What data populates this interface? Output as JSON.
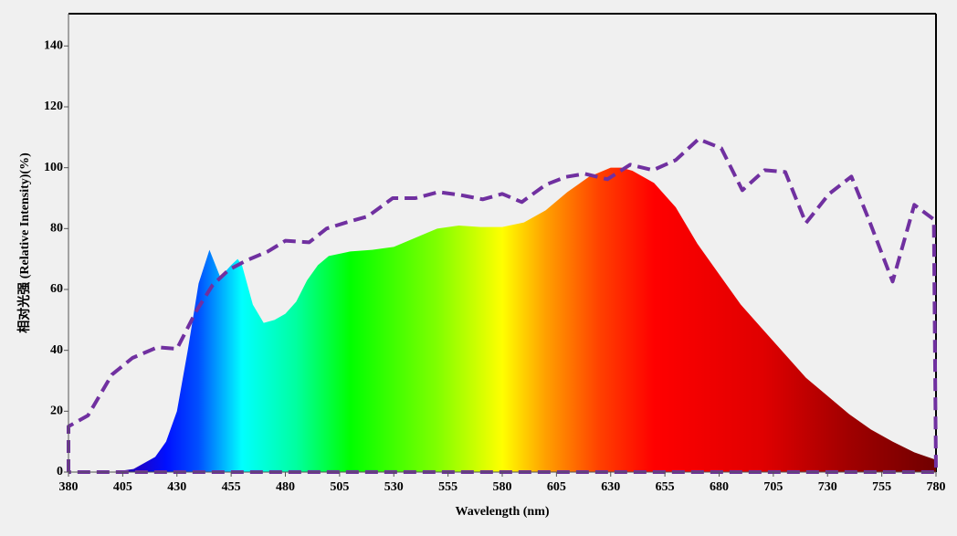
{
  "chart_data": {
    "type": "line",
    "x_label": "Wavelength (nm)",
    "y_label": "相对光强 (Relative Intensity)(%)",
    "xlim": [
      380,
      780
    ],
    "xticks": [
      380,
      405,
      430,
      455,
      480,
      505,
      530,
      555,
      580,
      605,
      630,
      655,
      680,
      705,
      730,
      755,
      780
    ],
    "ylim": [
      0,
      150
    ],
    "yticks": [
      0,
      20,
      40,
      60,
      80,
      100,
      120,
      140
    ],
    "series": [
      {
        "type": "area",
        "fill": "spectrum",
        "x": [
          380,
          400,
          410,
          420,
          425,
          430,
          435,
          440,
          445,
          450,
          455,
          458,
          460,
          465,
          470,
          475,
          480,
          485,
          490,
          495,
          500,
          510,
          520,
          530,
          540,
          550,
          560,
          570,
          580,
          590,
          600,
          610,
          620,
          630,
          635,
          640,
          650,
          660,
          670,
          680,
          690,
          700,
          710,
          720,
          730,
          740,
          750,
          760,
          770,
          780
        ],
        "values": [
          0,
          0,
          1,
          5,
          10,
          20,
          40,
          62,
          73,
          64,
          68,
          70,
          68,
          55,
          49,
          50,
          52,
          56,
          63,
          68,
          71,
          72.5,
          73,
          74,
          77,
          80,
          81,
          80.5,
          80.5,
          82,
          86,
          92,
          97,
          100,
          100,
          99,
          95,
          87,
          75,
          65,
          55,
          47,
          39,
          31,
          25,
          19,
          14,
          10,
          6.5,
          4
        ]
      },
      {
        "type": "line",
        "color": "#7030a0",
        "dashed": true,
        "x": [
          380,
          380,
          389,
          400,
          409.5,
          421,
          430,
          439,
          446.5,
          454,
          462,
          472,
          480,
          491,
          499,
          508,
          518,
          529.5,
          540,
          550.5,
          561,
          571,
          580,
          589,
          600,
          609.5,
          618,
          628.5,
          639,
          649.5,
          660,
          670.5,
          681,
          690.7,
          701,
          710.5,
          720,
          730.7,
          741,
          749,
          760,
          770,
          779,
          780,
          380
        ],
        "values": [
          0,
          15,
          18.6,
          32,
          37.5,
          41,
          40.5,
          53,
          61.5,
          66.5,
          69.5,
          72.5,
          76,
          75.5,
          80,
          82,
          84,
          90,
          90,
          92,
          91,
          89.6,
          91.4,
          88.7,
          94.4,
          97,
          98,
          96.2,
          101,
          99.2,
          102.5,
          109.4,
          106.4,
          92.6,
          99.2,
          98.6,
          81.8,
          91.4,
          97.1,
          83,
          62.6,
          87.8,
          83,
          0,
          0
        ]
      }
    ]
  }
}
